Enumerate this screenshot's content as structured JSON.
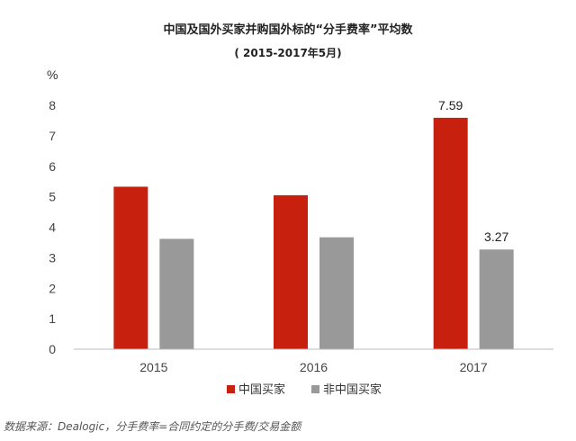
{
  "chart_data": {
    "type": "bar",
    "title": "中国及国外买家并购国外标的“分手费率”平均数",
    "subtitle": "( 2015-2017年5月)",
    "ylabel": "%",
    "ylim": [
      0,
      8
    ],
    "yticks": [
      "0",
      "1",
      "2",
      "3",
      "4",
      "5",
      "6",
      "7",
      "8"
    ],
    "categories": [
      "2015",
      "2016",
      "2017"
    ],
    "series": [
      {
        "name": "中国买家",
        "color": "#c8200e",
        "values": [
          5.33,
          5.05,
          7.59
        ],
        "labels": [
          "",
          "",
          "7.59"
        ]
      },
      {
        "name": "非中国买家",
        "color": "#999999",
        "values": [
          3.62,
          3.67,
          3.27
        ],
        "labels": [
          "",
          "",
          "3.27"
        ]
      }
    ],
    "grid": false,
    "legend_position": "bottom"
  },
  "source_note": "数据来源：Dealogic，分手费率=合同约定的分手费/交易金额"
}
